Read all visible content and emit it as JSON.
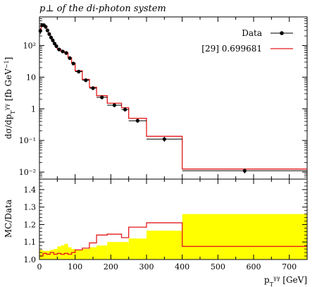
{
  "chart_data": [
    {
      "type": "line",
      "panel": "main",
      "title": "p⊥ of the di-photon system",
      "ylabel": "dσ/dp_T^γγ [fb GeV⁻¹]",
      "yscale": "log",
      "xlim": [
        0,
        750
      ],
      "ylim": [
        0.006,
        800
      ],
      "y_ticks": [
        {
          "value": 0.01,
          "label": "10⁻²"
        },
        {
          "value": 0.1,
          "label": "10⁻¹"
        },
        {
          "value": 1,
          "label": "1"
        },
        {
          "value": 10,
          "label": "10"
        },
        {
          "value": 100,
          "label": "10²"
        }
      ],
      "legend_position": "top-right",
      "data": {
        "name": "Data",
        "points": [
          {
            "x": 2.5,
            "xerr": 2.5,
            "y": 290,
            "yerr": 60
          },
          {
            "x": 7.5,
            "xerr": 2.5,
            "y": 440,
            "yerr": 60
          },
          {
            "x": 12.5,
            "xerr": 2.5,
            "y": 440,
            "yerr": 60
          },
          {
            "x": 17.5,
            "xerr": 2.5,
            "y": 390,
            "yerr": 50
          },
          {
            "x": 22.5,
            "xerr": 2.5,
            "y": 300,
            "yerr": 40
          },
          {
            "x": 27.5,
            "xerr": 2.5,
            "y": 230,
            "yerr": 30
          },
          {
            "x": 32.5,
            "xerr": 2.5,
            "y": 180,
            "yerr": 25
          },
          {
            "x": 37.5,
            "xerr": 2.5,
            "y": 145,
            "yerr": 20
          },
          {
            "x": 42.5,
            "xerr": 2.5,
            "y": 115,
            "yerr": 15
          },
          {
            "x": 47.5,
            "xerr": 2.5,
            "y": 95,
            "yerr": 12
          },
          {
            "x": 55,
            "xerr": 5,
            "y": 75,
            "yerr": 9
          },
          {
            "x": 65,
            "xerr": 5,
            "y": 65,
            "yerr": 8
          },
          {
            "x": 75,
            "xerr": 5,
            "y": 58,
            "yerr": 7
          },
          {
            "x": 85,
            "xerr": 5,
            "y": 40,
            "yerr": 5
          },
          {
            "x": 95,
            "xerr": 5,
            "y": 27,
            "yerr": 3.5
          },
          {
            "x": 110,
            "xerr": 10,
            "y": 15,
            "yerr": 2
          },
          {
            "x": 130,
            "xerr": 10,
            "y": 8,
            "yerr": 1
          },
          {
            "x": 150,
            "xerr": 10,
            "y": 4.5,
            "yerr": 0.6
          },
          {
            "x": 175,
            "xerr": 15,
            "y": 2.3,
            "yerr": 0.3
          },
          {
            "x": 210,
            "xerr": 20,
            "y": 1.3,
            "yerr": 0.18
          },
          {
            "x": 240,
            "xerr": 10,
            "y": 0.95,
            "yerr": 0.13
          },
          {
            "x": 275,
            "xerr": 25,
            "y": 0.42,
            "yerr": 0.06
          },
          {
            "x": 350,
            "xerr": 50,
            "y": 0.11,
            "yerr": 0.02
          },
          {
            "x": 575,
            "xerr": 175,
            "y": 0.011,
            "yerr": 0.002
          }
        ]
      },
      "mc": {
        "name": "[29] 0.699681",
        "color": "#e41a1c",
        "bins": [
          {
            "lo": 0,
            "hi": 5,
            "y": 310
          },
          {
            "lo": 5,
            "hi": 10,
            "y": 460
          },
          {
            "lo": 10,
            "hi": 15,
            "y": 455
          },
          {
            "lo": 15,
            "hi": 20,
            "y": 400
          },
          {
            "lo": 20,
            "hi": 25,
            "y": 310
          },
          {
            "lo": 25,
            "hi": 30,
            "y": 240
          },
          {
            "lo": 30,
            "hi": 35,
            "y": 185
          },
          {
            "lo": 35,
            "hi": 40,
            "y": 150
          },
          {
            "lo": 40,
            "hi": 45,
            "y": 120
          },
          {
            "lo": 45,
            "hi": 50,
            "y": 98
          },
          {
            "lo": 50,
            "hi": 60,
            "y": 77
          },
          {
            "lo": 60,
            "hi": 70,
            "y": 66
          },
          {
            "lo": 70,
            "hi": 80,
            "y": 59
          },
          {
            "lo": 80,
            "hi": 90,
            "y": 41
          },
          {
            "lo": 90,
            "hi": 100,
            "y": 28
          },
          {
            "lo": 100,
            "hi": 120,
            "y": 16
          },
          {
            "lo": 120,
            "hi": 140,
            "y": 8.5
          },
          {
            "lo": 140,
            "hi": 160,
            "y": 4.8
          },
          {
            "lo": 160,
            "hi": 190,
            "y": 2.6
          },
          {
            "lo": 190,
            "hi": 230,
            "y": 1.5
          },
          {
            "lo": 230,
            "hi": 250,
            "y": 1.08
          },
          {
            "lo": 250,
            "hi": 300,
            "y": 0.5
          },
          {
            "lo": 300,
            "hi": 400,
            "y": 0.135
          },
          {
            "lo": 400,
            "hi": 750,
            "y": 0.0125
          }
        ]
      }
    },
    {
      "type": "line",
      "panel": "ratio",
      "ylabel": "MC/Data",
      "xlabel": "p_T^γγ [GeV]",
      "xlim": [
        0,
        750
      ],
      "ylim": [
        1.0,
        1.46
      ],
      "x_ticks": [
        0,
        100,
        200,
        300,
        400,
        500,
        600,
        700
      ],
      "y_ticks": [
        1.0,
        1.1,
        1.2,
        1.3,
        1.4
      ],
      "band_color": "#ffff00",
      "band": [
        {
          "lo": 0,
          "hi": 10,
          "up": 1.055
        },
        {
          "lo": 10,
          "hi": 20,
          "up": 1.05
        },
        {
          "lo": 20,
          "hi": 30,
          "up": 1.05
        },
        {
          "lo": 30,
          "hi": 40,
          "up": 1.055
        },
        {
          "lo": 40,
          "hi": 50,
          "up": 1.06
        },
        {
          "lo": 50,
          "hi": 60,
          "up": 1.075
        },
        {
          "lo": 60,
          "hi": 70,
          "up": 1.08
        },
        {
          "lo": 70,
          "hi": 80,
          "up": 1.09
        },
        {
          "lo": 80,
          "hi": 90,
          "up": 1.07
        },
        {
          "lo": 90,
          "hi": 100,
          "up": 1.06
        },
        {
          "lo": 100,
          "hi": 120,
          "up": 1.055
        },
        {
          "lo": 120,
          "hi": 140,
          "up": 1.06
        },
        {
          "lo": 140,
          "hi": 160,
          "up": 1.07
        },
        {
          "lo": 160,
          "hi": 190,
          "up": 1.08
        },
        {
          "lo": 190,
          "hi": 230,
          "up": 1.1
        },
        {
          "lo": 230,
          "hi": 250,
          "up": 1.1
        },
        {
          "lo": 250,
          "hi": 300,
          "up": 1.12
        },
        {
          "lo": 300,
          "hi": 400,
          "up": 1.165
        },
        {
          "lo": 400,
          "hi": 750,
          "up": 1.26
        }
      ],
      "ratio": [
        {
          "lo": 0,
          "hi": 10,
          "y": 1.02
        },
        {
          "lo": 10,
          "hi": 20,
          "y": 1.035
        },
        {
          "lo": 20,
          "hi": 30,
          "y": 1.03
        },
        {
          "lo": 30,
          "hi": 40,
          "y": 1.04
        },
        {
          "lo": 40,
          "hi": 50,
          "y": 1.03
        },
        {
          "lo": 50,
          "hi": 60,
          "y": 1.035
        },
        {
          "lo": 60,
          "hi": 70,
          "y": 1.03
        },
        {
          "lo": 70,
          "hi": 80,
          "y": 1.035
        },
        {
          "lo": 80,
          "hi": 90,
          "y": 1.03
        },
        {
          "lo": 90,
          "hi": 100,
          "y": 1.04
        },
        {
          "lo": 100,
          "hi": 120,
          "y": 1.055
        },
        {
          "lo": 120,
          "hi": 140,
          "y": 1.065
        },
        {
          "lo": 140,
          "hi": 160,
          "y": 1.095
        },
        {
          "lo": 160,
          "hi": 190,
          "y": 1.14
        },
        {
          "lo": 190,
          "hi": 230,
          "y": 1.145
        },
        {
          "lo": 230,
          "hi": 250,
          "y": 1.125
        },
        {
          "lo": 250,
          "hi": 300,
          "y": 1.185
        },
        {
          "lo": 300,
          "hi": 400,
          "y": 1.21
        },
        {
          "lo": 400,
          "hi": 750,
          "y": 1.075
        }
      ]
    }
  ]
}
